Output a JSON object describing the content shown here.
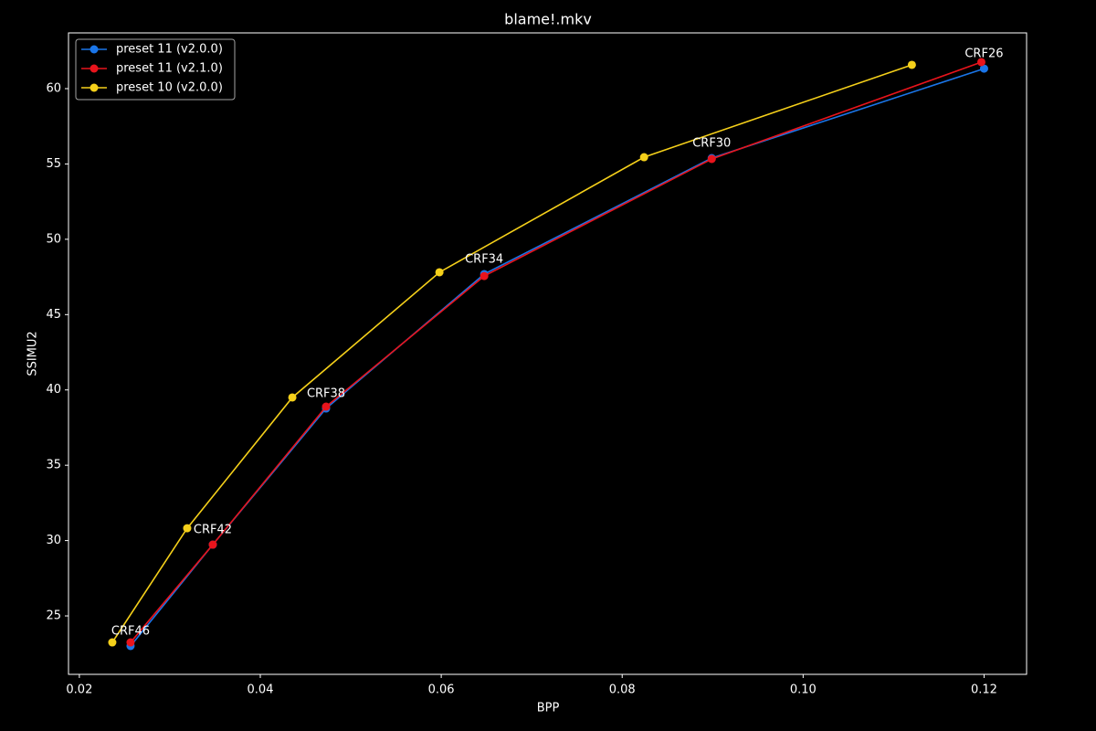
{
  "chart_data": {
    "type": "line",
    "title": "blame!.mkv",
    "x_label": "BPP",
    "y_label": "SSIMU2",
    "legend": "upper left",
    "grid": false,
    "xlim": [
      0.0188,
      0.1247
    ],
    "ylim": [
      21.12,
      63.7
    ],
    "xticks": [
      0.02,
      0.04,
      0.06,
      0.08,
      {
        "value": 0.1,
        "label": "0.10"
      },
      0.12
    ],
    "yticks": [
      25,
      30,
      35,
      40,
      45,
      50,
      55,
      60
    ],
    "series": [
      {
        "name": "preset 11 (v2.0.0)",
        "color": "#1a75e8",
        "x": [
          0.02566,
          0.03475,
          0.04727,
          0.06475,
          0.0899,
          0.12
        ],
        "values": [
          23.0,
          29.73,
          38.77,
          47.69,
          55.39,
          61.33
        ]
      },
      {
        "name": "preset 11 (v2.1.0)",
        "color": "#e8141c",
        "x": [
          0.02566,
          0.03475,
          0.04727,
          0.06475,
          0.0899,
          0.1197
        ],
        "values": [
          23.24,
          29.73,
          38.89,
          47.56,
          55.33,
          61.76
        ]
      },
      {
        "name": "preset 10 (v2.0.0)",
        "color": "#f5d01a",
        "x": [
          0.02364,
          0.03192,
          0.04354,
          0.0598,
          0.08242,
          0.11202
        ],
        "values": [
          23.24,
          30.82,
          39.5,
          47.81,
          55.45,
          61.58
        ]
      }
    ],
    "annotations": [
      "CRF46",
      "CRF42",
      "CRF38",
      "CRF34",
      "CRF30",
      "CRF26"
    ]
  }
}
